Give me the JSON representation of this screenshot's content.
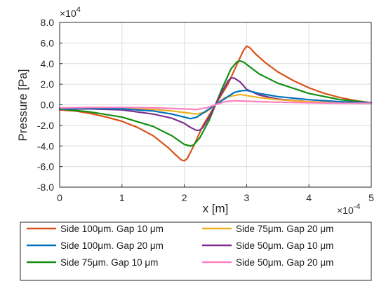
{
  "chart_data": {
    "type": "line",
    "xlabel": "x [m]",
    "ylabel": "Pressure [Pa]",
    "x_multiplier": "×10",
    "x_multiplier_exp": "-4",
    "y_multiplier": "×10",
    "y_multiplier_exp": "4",
    "xlim": [
      0,
      5
    ],
    "ylim": [
      -8,
      8
    ],
    "xticks": [
      0,
      1,
      2,
      3,
      4,
      5
    ],
    "xtick_labels": [
      "0",
      "1",
      "2",
      "3",
      "4",
      "5"
    ],
    "yticks": [
      -8,
      -6,
      -4,
      -2,
      0,
      2,
      4,
      6,
      8
    ],
    "ytick_labels": [
      "-8.0",
      "-6.0",
      "-4.0",
      "-2.0",
      "0.0",
      "2.0",
      "4.0",
      "6.0",
      "8.0"
    ],
    "grid": true,
    "legend_position": "below-plot",
    "series": [
      {
        "name": "Side 100μm. Gap 10 μm",
        "color": "#D95319",
        "x": [
          0,
          0.25,
          0.5,
          0.75,
          1.0,
          1.25,
          1.5,
          1.75,
          1.85,
          1.95,
          2.0,
          2.05,
          2.15,
          2.3,
          2.5,
          2.7,
          2.85,
          2.95,
          3.0,
          3.05,
          3.15,
          3.3,
          3.5,
          3.75,
          4.0,
          4.25,
          4.5,
          4.75,
          5.0
        ],
        "y": [
          -0.5,
          -0.6,
          -0.85,
          -1.2,
          -1.6,
          -2.2,
          -3.0,
          -4.2,
          -4.8,
          -5.35,
          -5.45,
          -5.2,
          -4.0,
          -2.0,
          0,
          2.0,
          4.0,
          5.3,
          5.7,
          5.55,
          4.9,
          4.1,
          3.2,
          2.35,
          1.65,
          1.1,
          0.7,
          0.4,
          0.2
        ]
      },
      {
        "name": "Side 100μm. Gap 20 μm",
        "color": "#0072BD",
        "x": [
          0,
          0.5,
          1.0,
          1.5,
          1.8,
          2.0,
          2.1,
          2.2,
          2.3,
          2.5,
          2.7,
          2.8,
          2.9,
          3.0,
          3.2,
          3.5,
          4.0,
          4.5,
          5.0
        ],
        "y": [
          -0.4,
          -0.35,
          -0.4,
          -0.6,
          -0.9,
          -1.2,
          -1.35,
          -1.2,
          -0.8,
          0,
          0.8,
          1.2,
          1.35,
          1.4,
          1.1,
          0.8,
          0.5,
          0.3,
          0.2
        ]
      },
      {
        "name": "Side 75μm. Gap 10 μm",
        "color": "#138F13",
        "x": [
          0,
          0.5,
          1.0,
          1.5,
          1.8,
          2.0,
          2.1,
          2.15,
          2.25,
          2.4,
          2.5,
          2.6,
          2.75,
          2.85,
          2.9,
          2.95,
          3.05,
          3.2,
          3.5,
          4.0,
          4.5,
          5.0
        ],
        "y": [
          -0.4,
          -0.7,
          -1.2,
          -2.1,
          -3.0,
          -3.85,
          -4.0,
          -3.9,
          -3.2,
          -1.5,
          0,
          1.5,
          3.5,
          4.2,
          4.25,
          4.15,
          3.7,
          3.0,
          2.1,
          1.1,
          0.5,
          0.2
        ]
      },
      {
        "name": "Side 75μm. Gap 20 μm",
        "color": "#EDB120",
        "x": [
          0,
          0.5,
          1.0,
          1.5,
          1.8,
          2.0,
          2.2,
          2.35,
          2.5,
          2.65,
          2.8,
          2.9,
          3.0,
          3.2,
          3.5,
          4.0,
          4.5,
          5.0
        ],
        "y": [
          -0.4,
          -0.3,
          -0.3,
          -0.45,
          -0.6,
          -0.75,
          -0.9,
          -0.7,
          0,
          0.7,
          0.9,
          1.0,
          0.9,
          0.7,
          0.5,
          0.3,
          0.2,
          0.15
        ]
      },
      {
        "name": "Side 50μm. Gap 10 μm",
        "color": "#7E2F8E",
        "x": [
          0,
          0.5,
          1.0,
          1.5,
          1.8,
          2.0,
          2.1,
          2.2,
          2.25,
          2.3,
          2.4,
          2.5,
          2.6,
          2.7,
          2.75,
          2.8,
          2.9,
          3.0,
          3.2,
          3.5,
          4.0,
          4.5,
          5.0
        ],
        "y": [
          -0.4,
          -0.4,
          -0.5,
          -0.9,
          -1.3,
          -1.8,
          -2.2,
          -2.5,
          -2.45,
          -2.2,
          -1.2,
          0,
          1.2,
          2.3,
          2.6,
          2.6,
          2.2,
          1.5,
          0.95,
          0.55,
          0.3,
          0.2,
          0.15
        ]
      },
      {
        "name": "Side 50μm. Gap 20 μm",
        "color": "#FF80C0",
        "x": [
          0,
          0.5,
          1.0,
          1.5,
          2.0,
          2.2,
          2.35,
          2.5,
          2.65,
          2.8,
          3.0,
          3.5,
          4.0,
          4.5,
          5.0
        ],
        "y": [
          -0.3,
          -0.25,
          -0.25,
          -0.3,
          -0.4,
          -0.45,
          -0.3,
          0,
          0.3,
          0.4,
          0.35,
          0.25,
          0.2,
          0.15,
          0.15
        ]
      }
    ]
  }
}
